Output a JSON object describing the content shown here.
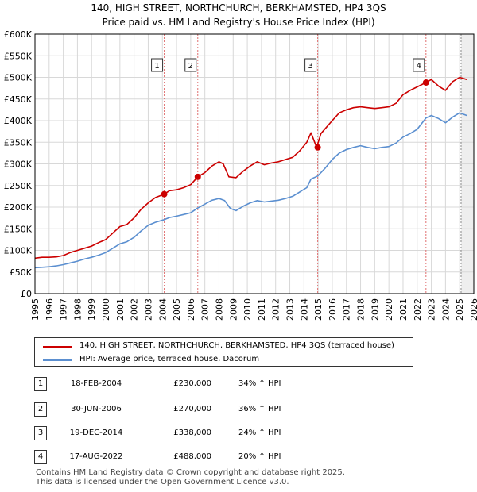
{
  "title": "140, HIGH STREET, NORTHCHURCH, BERKHAMSTED, HP4 3QS",
  "subtitle": "Price paid vs. HM Land Registry's House Price Index (HPI)",
  "chart_data": {
    "type": "line",
    "x_range": [
      1995,
      2026
    ],
    "ylim": [
      0,
      600000
    ],
    "y_ticks": [
      {
        "value": 0,
        "label": "£0"
      },
      {
        "value": 50000,
        "label": "£50K"
      },
      {
        "value": 100000,
        "label": "£100K"
      },
      {
        "value": 150000,
        "label": "£150K"
      },
      {
        "value": 200000,
        "label": "£200K"
      },
      {
        "value": 250000,
        "label": "£250K"
      },
      {
        "value": 300000,
        "label": "£300K"
      },
      {
        "value": 350000,
        "label": "£350K"
      },
      {
        "value": 400000,
        "label": "£400K"
      },
      {
        "value": 450000,
        "label": "£450K"
      },
      {
        "value": 500000,
        "label": "£500K"
      },
      {
        "value": 550000,
        "label": "£550K"
      },
      {
        "value": 600000,
        "label": "£600K"
      }
    ],
    "x_ticks": [
      "1995",
      "1996",
      "1997",
      "1998",
      "1999",
      "2000",
      "2001",
      "2002",
      "2003",
      "2004",
      "2005",
      "2006",
      "2007",
      "2008",
      "2009",
      "2010",
      "2011",
      "2012",
      "2013",
      "2014",
      "2015",
      "2016",
      "2017",
      "2018",
      "2019",
      "2020",
      "2021",
      "2022",
      "2023",
      "2024",
      "2025",
      "2026"
    ],
    "grid": true,
    "future_shade_from": 2025.1,
    "series": [
      {
        "name": "140, HIGH STREET, NORTHCHURCH, BERKHAMSTED, HP4 3QS (terraced house)",
        "color": "#cc0000",
        "points": [
          [
            1995.0,
            82000
          ],
          [
            1995.5,
            84000
          ],
          [
            1996.0,
            84000
          ],
          [
            1996.5,
            85000
          ],
          [
            1997.0,
            88000
          ],
          [
            1997.5,
            95000
          ],
          [
            1998.0,
            100000
          ],
          [
            1998.5,
            105000
          ],
          [
            1999.0,
            110000
          ],
          [
            1999.5,
            118000
          ],
          [
            2000.0,
            125000
          ],
          [
            2000.5,
            140000
          ],
          [
            2001.0,
            155000
          ],
          [
            2001.5,
            160000
          ],
          [
            2002.0,
            175000
          ],
          [
            2002.5,
            195000
          ],
          [
            2003.0,
            210000
          ],
          [
            2003.5,
            222000
          ],
          [
            2004.13,
            230000
          ],
          [
            2004.5,
            238000
          ],
          [
            2005.0,
            240000
          ],
          [
            2005.5,
            245000
          ],
          [
            2006.0,
            252000
          ],
          [
            2006.5,
            270000
          ],
          [
            2007.0,
            280000
          ],
          [
            2007.5,
            295000
          ],
          [
            2008.0,
            305000
          ],
          [
            2008.3,
            300000
          ],
          [
            2008.7,
            270000
          ],
          [
            2009.2,
            268000
          ],
          [
            2009.7,
            283000
          ],
          [
            2010.2,
            295000
          ],
          [
            2010.7,
            305000
          ],
          [
            2011.2,
            298000
          ],
          [
            2011.7,
            302000
          ],
          [
            2012.2,
            305000
          ],
          [
            2012.7,
            310000
          ],
          [
            2013.2,
            315000
          ],
          [
            2013.7,
            330000
          ],
          [
            2014.2,
            350000
          ],
          [
            2014.5,
            372000
          ],
          [
            2014.9,
            338000
          ],
          [
            2015.2,
            370000
          ],
          [
            2015.6,
            385000
          ],
          [
            2016.0,
            400000
          ],
          [
            2016.5,
            418000
          ],
          [
            2017.0,
            425000
          ],
          [
            2017.5,
            430000
          ],
          [
            2018.0,
            432000
          ],
          [
            2018.5,
            430000
          ],
          [
            2019.0,
            428000
          ],
          [
            2019.5,
            430000
          ],
          [
            2020.0,
            432000
          ],
          [
            2020.5,
            440000
          ],
          [
            2021.0,
            460000
          ],
          [
            2021.5,
            470000
          ],
          [
            2022.0,
            478000
          ],
          [
            2022.62,
            488000
          ],
          [
            2023.0,
            495000
          ],
          [
            2023.5,
            480000
          ],
          [
            2024.0,
            470000
          ],
          [
            2024.5,
            490000
          ],
          [
            2025.0,
            500000
          ],
          [
            2025.5,
            495000
          ]
        ]
      },
      {
        "name": "HPI: Average price, terraced house, Dacorum",
        "color": "#5b8fd0",
        "points": [
          [
            1995.0,
            60000
          ],
          [
            1995.5,
            61000
          ],
          [
            1996.0,
            62000
          ],
          [
            1996.5,
            64000
          ],
          [
            1997.0,
            67000
          ],
          [
            1997.5,
            71000
          ],
          [
            1998.0,
            75000
          ],
          [
            1998.5,
            80000
          ],
          [
            1999.0,
            84000
          ],
          [
            1999.5,
            89000
          ],
          [
            2000.0,
            95000
          ],
          [
            2000.5,
            105000
          ],
          [
            2001.0,
            115000
          ],
          [
            2001.5,
            120000
          ],
          [
            2002.0,
            130000
          ],
          [
            2002.5,
            145000
          ],
          [
            2003.0,
            158000
          ],
          [
            2003.5,
            165000
          ],
          [
            2004.13,
            171000
          ],
          [
            2004.5,
            176000
          ],
          [
            2005.0,
            179000
          ],
          [
            2005.5,
            183000
          ],
          [
            2006.0,
            187000
          ],
          [
            2006.5,
            198000
          ],
          [
            2007.0,
            207000
          ],
          [
            2007.5,
            216000
          ],
          [
            2008.0,
            220000
          ],
          [
            2008.4,
            215000
          ],
          [
            2008.8,
            197000
          ],
          [
            2009.2,
            192000
          ],
          [
            2009.7,
            202000
          ],
          [
            2010.2,
            210000
          ],
          [
            2010.7,
            215000
          ],
          [
            2011.2,
            212000
          ],
          [
            2011.7,
            214000
          ],
          [
            2012.2,
            216000
          ],
          [
            2012.7,
            220000
          ],
          [
            2013.2,
            225000
          ],
          [
            2013.7,
            235000
          ],
          [
            2014.2,
            245000
          ],
          [
            2014.5,
            265000
          ],
          [
            2014.97,
            272000
          ],
          [
            2015.5,
            290000
          ],
          [
            2016.0,
            310000
          ],
          [
            2016.5,
            325000
          ],
          [
            2017.0,
            333000
          ],
          [
            2017.5,
            338000
          ],
          [
            2018.0,
            342000
          ],
          [
            2018.5,
            338000
          ],
          [
            2019.0,
            335000
          ],
          [
            2019.5,
            338000
          ],
          [
            2020.0,
            340000
          ],
          [
            2020.5,
            348000
          ],
          [
            2021.0,
            362000
          ],
          [
            2021.5,
            370000
          ],
          [
            2022.0,
            380000
          ],
          [
            2022.62,
            406000
          ],
          [
            2023.0,
            412000
          ],
          [
            2023.5,
            405000
          ],
          [
            2024.0,
            395000
          ],
          [
            2024.5,
            408000
          ],
          [
            2025.0,
            418000
          ],
          [
            2025.5,
            412000
          ]
        ]
      }
    ],
    "sales": [
      {
        "marker": "1",
        "x": 2004.13,
        "y": 230000
      },
      {
        "marker": "2",
        "x": 2006.5,
        "y": 270000
      },
      {
        "marker": "3",
        "x": 2014.97,
        "y": 338000
      },
      {
        "marker": "4",
        "x": 2022.62,
        "y": 488000
      }
    ]
  },
  "legend": {
    "property_label": "140, HIGH STREET, NORTHCHURCH, BERKHAMSTED, HP4 3QS (terraced house)",
    "hpi_label": "HPI: Average price, terraced house, Dacorum"
  },
  "transactions": [
    {
      "num": "1",
      "date": "18-FEB-2004",
      "price": "£230,000",
      "hpi": "34% ↑ HPI"
    },
    {
      "num": "2",
      "date": "30-JUN-2006",
      "price": "£270,000",
      "hpi": "36% ↑ HPI"
    },
    {
      "num": "3",
      "date": "19-DEC-2014",
      "price": "£338,000",
      "hpi": "24% ↑ HPI"
    },
    {
      "num": "4",
      "date": "17-AUG-2022",
      "price": "£488,000",
      "hpi": "20% ↑ HPI"
    }
  ],
  "footer": {
    "line1": "Contains HM Land Registry data © Crown copyright and database right 2025.",
    "line2": "This data is licensed under the Open Government Licence v3.0."
  }
}
